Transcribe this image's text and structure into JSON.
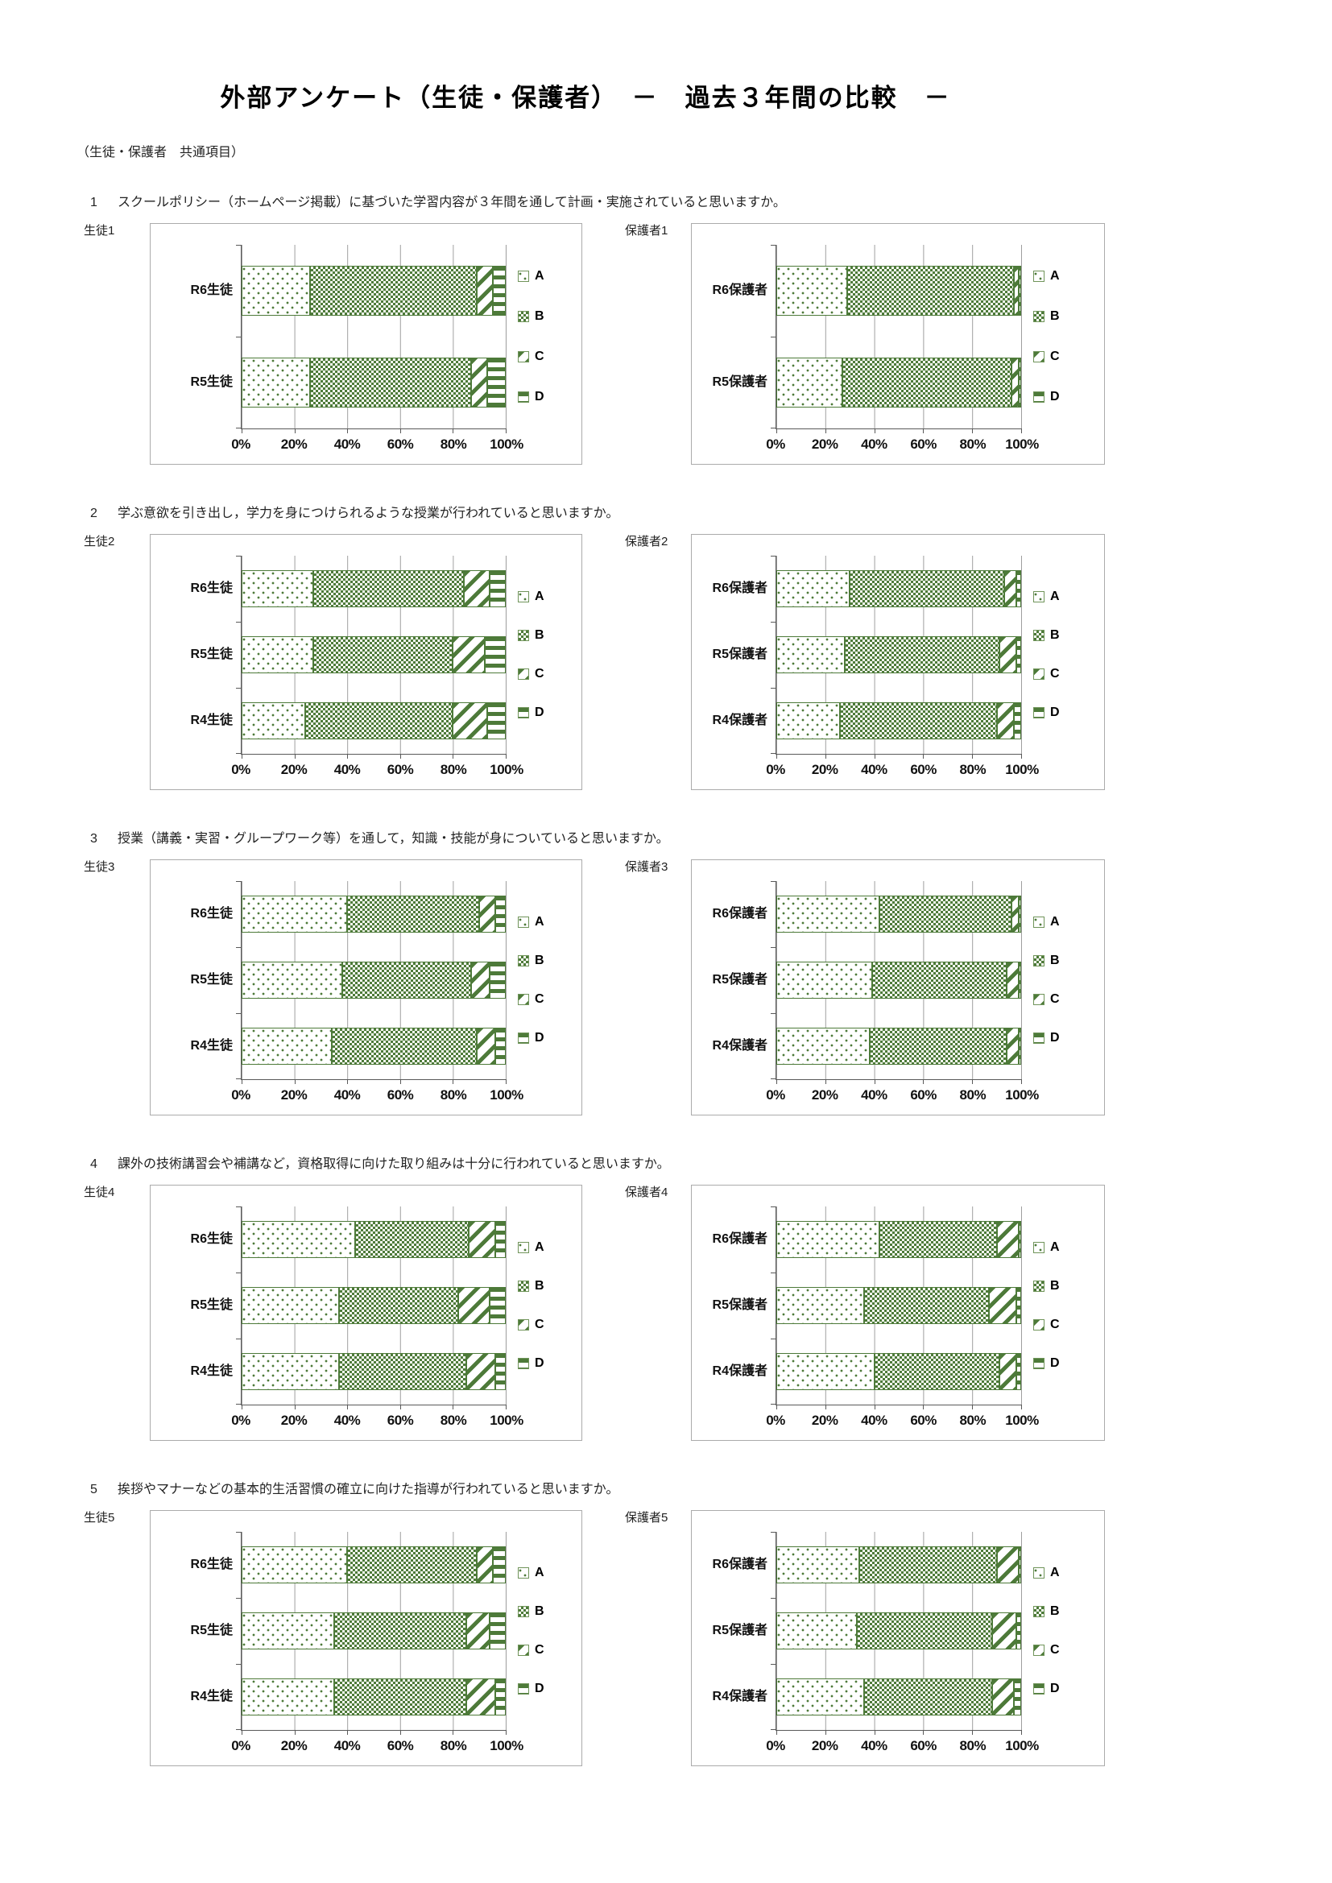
{
  "page": {
    "title": "外部アンケート（生徒・保護者）　－　過去３年間の比較　－",
    "subtitle": "（生徒・保護者　共通項目）"
  },
  "colors": {
    "series_green": "#4d7a39",
    "grid_line": "#9f9f9f",
    "axis_line": "#595959",
    "box_border": "#ababab"
  },
  "axis": {
    "x_ticks": [
      "0%",
      "20%",
      "40%",
      "60%",
      "80%",
      "100%"
    ],
    "xlim": [
      0,
      100
    ]
  },
  "legend": {
    "items": [
      {
        "label": "A",
        "pattern": "dots"
      },
      {
        "label": "B",
        "pattern": "checker"
      },
      {
        "label": "C",
        "pattern": "diagonal-stripes"
      },
      {
        "label": "D",
        "pattern": "horizontal-stripes"
      }
    ]
  },
  "chart_data": [
    {
      "question_number": "1",
      "question_text": "スクールポリシー（ホームページ掲載）に基づいた学習内容が３年間を通して計画・実施されていると思いますか。",
      "charts": [
        {
          "type": "bar",
          "stacked": true,
          "orientation": "horizontal",
          "units": "percent",
          "panel_label": "生徒1",
          "categories": [
            "R6生徒",
            "R5生徒"
          ],
          "series": [
            {
              "name": "A",
              "values": [
                26,
                26
              ]
            },
            {
              "name": "B",
              "values": [
                63,
                61
              ]
            },
            {
              "name": "C",
              "values": [
                6,
                6
              ]
            },
            {
              "name": "D",
              "values": [
                5,
                7
              ]
            }
          ],
          "xlim": [
            0,
            100
          ],
          "legend_position": "right",
          "grid": true
        },
        {
          "type": "bar",
          "stacked": true,
          "orientation": "horizontal",
          "units": "percent",
          "panel_label": "保護者1",
          "categories": [
            "R6保護者",
            "R5保護者"
          ],
          "series": [
            {
              "name": "A",
              "values": [
                29,
                27
              ]
            },
            {
              "name": "B",
              "values": [
                68,
                69
              ]
            },
            {
              "name": "C",
              "values": [
                2,
                3
              ]
            },
            {
              "name": "D",
              "values": [
                1,
                1
              ]
            }
          ],
          "xlim": [
            0,
            100
          ],
          "legend_position": "right",
          "grid": true
        }
      ]
    },
    {
      "question_number": "2",
      "question_text": "学ぶ意欲を引き出し，学力を身につけられるような授業が行われていると思いますか。",
      "charts": [
        {
          "type": "bar",
          "stacked": true,
          "orientation": "horizontal",
          "units": "percent",
          "panel_label": "生徒2",
          "categories": [
            "R6生徒",
            "R5生徒",
            "R4生徒"
          ],
          "series": [
            {
              "name": "A",
              "values": [
                27,
                27,
                24
              ]
            },
            {
              "name": "B",
              "values": [
                57,
                53,
                56
              ]
            },
            {
              "name": "C",
              "values": [
                10,
                12,
                13
              ]
            },
            {
              "name": "D",
              "values": [
                6,
                8,
                7
              ]
            }
          ],
          "xlim": [
            0,
            100
          ],
          "legend_position": "right",
          "grid": true
        },
        {
          "type": "bar",
          "stacked": true,
          "orientation": "horizontal",
          "units": "percent",
          "panel_label": "保護者2",
          "categories": [
            "R6保護者",
            "R5保護者",
            "R4保護者"
          ],
          "series": [
            {
              "name": "A",
              "values": [
                30,
                28,
                26
              ]
            },
            {
              "name": "B",
              "values": [
                63,
                63,
                64
              ]
            },
            {
              "name": "C",
              "values": [
                5,
                7,
                7
              ]
            },
            {
              "name": "D",
              "values": [
                2,
                2,
                3
              ]
            }
          ],
          "xlim": [
            0,
            100
          ],
          "legend_position": "right",
          "grid": true
        }
      ]
    },
    {
      "question_number": "3",
      "question_text": "授業（講義・実習・グループワーク等）を通して，知識・技能が身についていると思いますか。",
      "charts": [
        {
          "type": "bar",
          "stacked": true,
          "orientation": "horizontal",
          "units": "percent",
          "panel_label": "生徒3",
          "categories": [
            "R6生徒",
            "R5生徒",
            "R4生徒"
          ],
          "series": [
            {
              "name": "A",
              "values": [
                40,
                38,
                34
              ]
            },
            {
              "name": "B",
              "values": [
                50,
                49,
                55
              ]
            },
            {
              "name": "C",
              "values": [
                6,
                7,
                7
              ]
            },
            {
              "name": "D",
              "values": [
                4,
                6,
                4
              ]
            }
          ],
          "xlim": [
            0,
            100
          ],
          "legend_position": "right",
          "grid": true
        },
        {
          "type": "bar",
          "stacked": true,
          "orientation": "horizontal",
          "units": "percent",
          "panel_label": "保護者3",
          "categories": [
            "R6保護者",
            "R5保護者",
            "R4保護者"
          ],
          "series": [
            {
              "name": "A",
              "values": [
                42,
                39,
                38
              ]
            },
            {
              "name": "B",
              "values": [
                54,
                55,
                56
              ]
            },
            {
              "name": "C",
              "values": [
                3,
                5,
                5
              ]
            },
            {
              "name": "D",
              "values": [
                1,
                1,
                1
              ]
            }
          ],
          "xlim": [
            0,
            100
          ],
          "legend_position": "right",
          "grid": true
        }
      ]
    },
    {
      "question_number": "4",
      "question_text": "課外の技術講習会や補講など，資格取得に向けた取り組みは十分に行われていると思いますか。",
      "charts": [
        {
          "type": "bar",
          "stacked": true,
          "orientation": "horizontal",
          "units": "percent",
          "panel_label": "生徒4",
          "categories": [
            "R6生徒",
            "R5生徒",
            "R4生徒"
          ],
          "series": [
            {
              "name": "A",
              "values": [
                43,
                37,
                37
              ]
            },
            {
              "name": "B",
              "values": [
                43,
                45,
                48
              ]
            },
            {
              "name": "C",
              "values": [
                10,
                12,
                11
              ]
            },
            {
              "name": "D",
              "values": [
                4,
                6,
                4
              ]
            }
          ],
          "xlim": [
            0,
            100
          ],
          "legend_position": "right",
          "grid": true
        },
        {
          "type": "bar",
          "stacked": true,
          "orientation": "horizontal",
          "units": "percent",
          "panel_label": "保護者4",
          "categories": [
            "R6保護者",
            "R5保護者",
            "R4保護者"
          ],
          "series": [
            {
              "name": "A",
              "values": [
                42,
                36,
                40
              ]
            },
            {
              "name": "B",
              "values": [
                48,
                51,
                51
              ]
            },
            {
              "name": "C",
              "values": [
                9,
                11,
                7
              ]
            },
            {
              "name": "D",
              "values": [
                1,
                2,
                2
              ]
            }
          ],
          "xlim": [
            0,
            100
          ],
          "legend_position": "right",
          "grid": true
        }
      ]
    },
    {
      "question_number": "5",
      "question_text": "挨拶やマナーなどの基本的生活習慣の確立に向けた指導が行われていると思いますか。",
      "charts": [
        {
          "type": "bar",
          "stacked": true,
          "orientation": "horizontal",
          "units": "percent",
          "panel_label": "生徒5",
          "categories": [
            "R6生徒",
            "R5生徒",
            "R4生徒"
          ],
          "series": [
            {
              "name": "A",
              "values": [
                40,
                35,
                35
              ]
            },
            {
              "name": "B",
              "values": [
                49,
                50,
                50
              ]
            },
            {
              "name": "C",
              "values": [
                6,
                9,
                11
              ]
            },
            {
              "name": "D",
              "values": [
                5,
                6,
                4
              ]
            }
          ],
          "xlim": [
            0,
            100
          ],
          "legend_position": "right",
          "grid": true
        },
        {
          "type": "bar",
          "stacked": true,
          "orientation": "horizontal",
          "units": "percent",
          "panel_label": "保護者5",
          "categories": [
            "R6保護者",
            "R5保護者",
            "R4保護者"
          ],
          "series": [
            {
              "name": "A",
              "values": [
                34,
                33,
                36
              ]
            },
            {
              "name": "B",
              "values": [
                56,
                55,
                52
              ]
            },
            {
              "name": "C",
              "values": [
                9,
                10,
                9
              ]
            },
            {
              "name": "D",
              "values": [
                1,
                2,
                3
              ]
            }
          ],
          "xlim": [
            0,
            100
          ],
          "legend_position": "right",
          "grid": true
        }
      ]
    }
  ]
}
